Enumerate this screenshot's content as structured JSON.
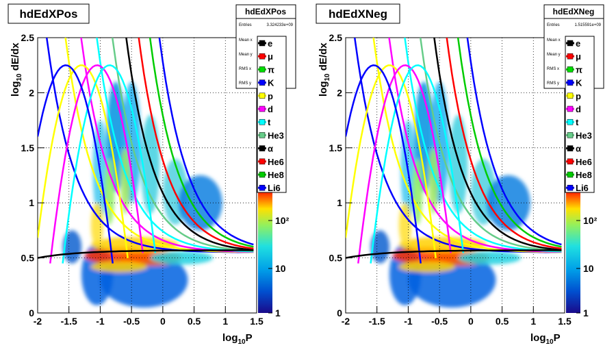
{
  "chart_data": [
    {
      "type": "heatmap",
      "title": "hdEdXPos",
      "xlabel_main": "log",
      "xlabel_sub": "10",
      "xlabel_tail": "P",
      "ylabel_main": "log",
      "ylabel_sub": "10",
      "ylabel_tail": " dE/dx",
      "xlim": [
        -2,
        1.5
      ],
      "ylim": [
        0,
        2.5
      ],
      "x_ticks": [
        "-2",
        "-1.5",
        "-1",
        "-0.5",
        "0",
        "0.5",
        "1",
        "1.5"
      ],
      "y_ticks": [
        "0",
        "0.5",
        "1",
        "1.5",
        "2",
        "2.5"
      ],
      "color_scale": "log",
      "color_ticks": [
        "1",
        "10",
        "10²"
      ],
      "stats": {
        "header": "hdEdXPos",
        "entries_label": "Entries",
        "entries_value": "3.324233e+09",
        "rows": [
          "Mean x",
          "Mean y",
          "RMS x",
          "RMS y"
        ]
      },
      "legend": [
        "e",
        "μ",
        "π",
        "K",
        "p",
        "d",
        "t",
        "He3",
        "α",
        "He6",
        "He8",
        "Li6"
      ]
    },
    {
      "type": "heatmap",
      "title": "hdEdXNeg",
      "xlabel_main": "log",
      "xlabel_sub": "10",
      "xlabel_tail": "P",
      "ylabel_main": "log",
      "ylabel_sub": "10",
      "ylabel_tail": " dE/dx",
      "xlim": [
        -2,
        1.5
      ],
      "ylim": [
        0,
        2.5
      ],
      "x_ticks": [
        "-2",
        "-1.5",
        "-1",
        "-0.5",
        "0",
        "0.5",
        "1",
        "1.5"
      ],
      "y_ticks": [
        "0",
        "0.5",
        "1",
        "1.5",
        "2",
        "2.5"
      ],
      "color_scale": "log",
      "color_ticks": [
        "1",
        "10",
        "10²"
      ],
      "stats": {
        "header": "hdEdXNeg",
        "entries_label": "Entries",
        "entries_value": "1.515591e+09",
        "rows": [
          "Mean x",
          "Mean y",
          "RMS x",
          "RMS y"
        ]
      },
      "legend": [
        "e",
        "μ",
        "π",
        "K",
        "p",
        "d",
        "t",
        "He3",
        "α",
        "He6",
        "He8",
        "Li6"
      ]
    }
  ],
  "colors": {
    "e": "#000000",
    "mu": "#ff0000",
    "pi": "#00dd00",
    "K": "#0000ff",
    "p": "#ffff00",
    "d": "#ff00ff",
    "t": "#00ffff",
    "He3": "#66cc88",
    "alpha": "#000000",
    "He6": "#ff0000",
    "He8": "#00cc00",
    "Li6": "#0000ff"
  }
}
